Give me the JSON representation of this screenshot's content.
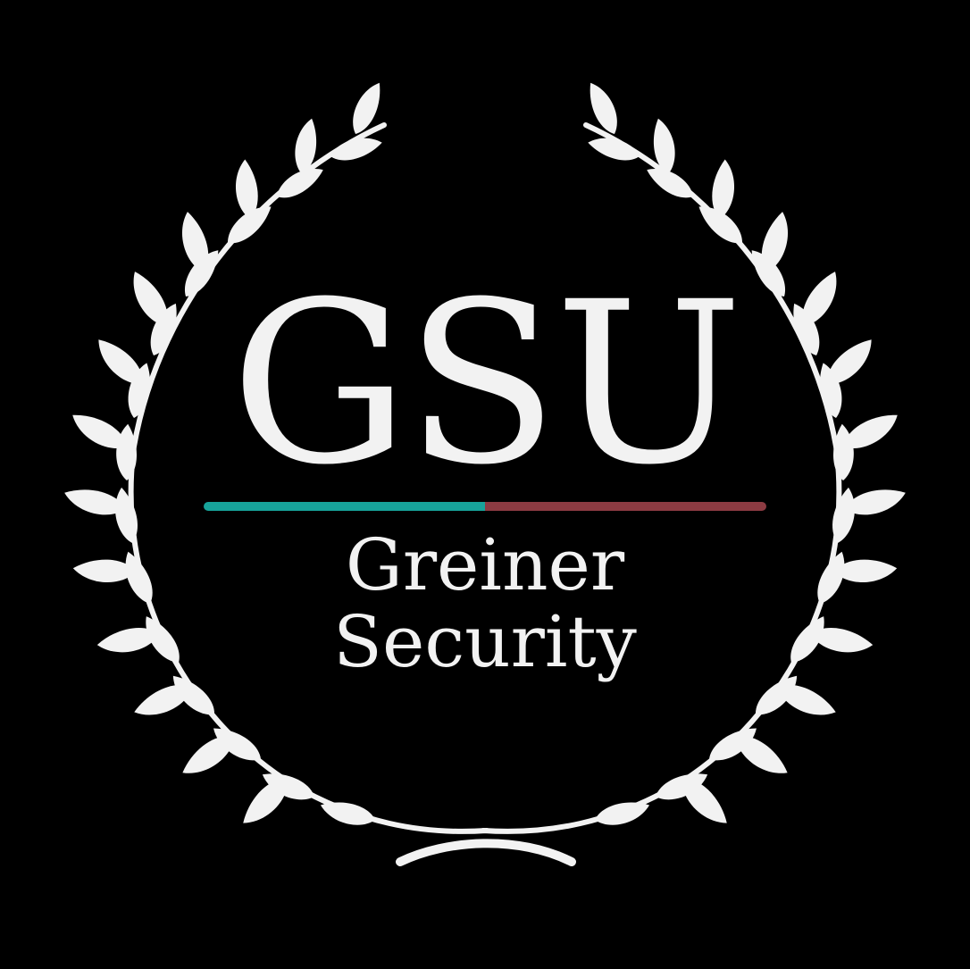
{
  "logo": {
    "monogram": "GSU",
    "name_line_1": "Greiner",
    "name_line_2": "Security",
    "emblem_icon": "laurel-wreath-icon"
  },
  "colors": {
    "background": "#000000",
    "foreground": "#f2f2f2",
    "accent_teal": "#17a39a",
    "accent_red": "#8c3b42"
  }
}
